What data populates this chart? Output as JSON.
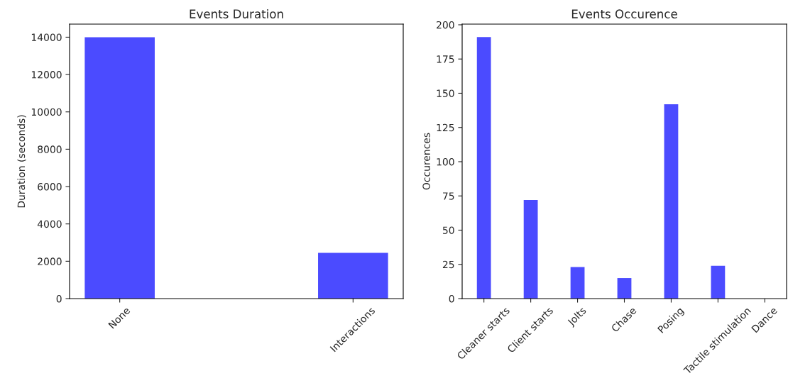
{
  "chart_data": [
    {
      "type": "bar",
      "title": "Events Duration",
      "ylabel": "Duration (seconds)",
      "categories": [
        "None",
        "Interactions"
      ],
      "values": [
        14000,
        2450
      ],
      "color": "#4b4bff",
      "ylim": [
        0,
        14700
      ],
      "yticks": [
        0,
        2000,
        4000,
        6000,
        8000,
        10000,
        12000,
        14000
      ],
      "grid": false,
      "legend": false
    },
    {
      "type": "bar",
      "title": "Events Occurence",
      "ylabel": "Occurences",
      "categories": [
        "Cleaner starts",
        "Client starts",
        "Jolts",
        "Chase",
        "Posing",
        "Tactile stimulation",
        "Dance"
      ],
      "values": [
        191,
        72,
        23,
        15,
        142,
        24,
        0
      ],
      "color": "#4b4bff",
      "ylim": [
        0,
        200.5
      ],
      "yticks": [
        0,
        25,
        50,
        75,
        100,
        125,
        150,
        175,
        200
      ],
      "grid": false,
      "legend": false
    }
  ]
}
